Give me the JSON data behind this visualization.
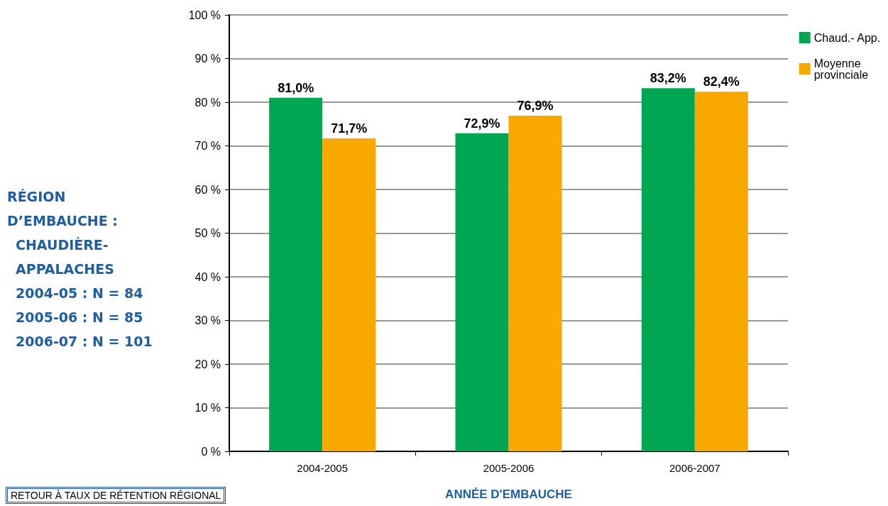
{
  "chart_data": {
    "type": "bar",
    "xlabel": "ANNÉE D'EMBAUCHE",
    "categories": [
      "2004-2005",
      "2005-2006",
      "2006-2007"
    ],
    "series": [
      {
        "name": "Chaud.- App.",
        "color": "#00a651",
        "values": [
          81.0,
          72.9,
          83.2
        ],
        "value_labels": [
          "81,0%",
          "72,9%",
          "83,2%"
        ]
      },
      {
        "name": "Moyenne provinciale",
        "color": "#f9a800",
        "values": [
          71.7,
          76.9,
          82.4
        ],
        "value_labels": [
          "71,7%",
          "76,9%",
          "82,4%"
        ]
      }
    ],
    "ylim": [
      0,
      100
    ],
    "yticks": [
      {
        "value": 0,
        "label": "0 %"
      },
      {
        "value": 10,
        "label": "10 %"
      },
      {
        "value": 20,
        "label": "20 %"
      },
      {
        "value": 30,
        "label": "30 %"
      },
      {
        "value": 40,
        "label": "40 %"
      },
      {
        "value": 50,
        "label": "50 %"
      },
      {
        "value": 60,
        "label": "60 %"
      },
      {
        "value": 70,
        "label": "70 %"
      },
      {
        "value": 80,
        "label": "80 %"
      },
      {
        "value": 90,
        "label": "90 %"
      },
      {
        "value": 100,
        "label": "100 %"
      }
    ],
    "grid": "y",
    "legend": "top right",
    "annotations": [
      "RÉGION",
      "D’EMBAUCHE :",
      "CHAUDIÈRE-",
      "APPALACHES",
      "2004-05 : N = 84",
      "2005-06 : N = 85",
      "2006-07 : N = 101",
      "RETOUR À TAUX DE RÉTENTION RÉGIONAL"
    ]
  }
}
